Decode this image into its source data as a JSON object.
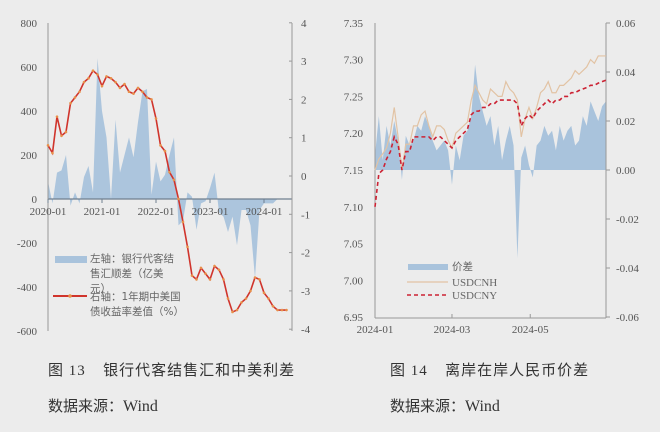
{
  "figure13": {
    "caption_num": "图 13",
    "caption_title": "银行代客结售汇和中美利差",
    "source_label": "数据来源：",
    "source_value": "Wind"
  },
  "figure14": {
    "caption_num": "图 14",
    "caption_title": "离岸在岸人民币价差",
    "source_label": "数据来源：",
    "source_value": "Wind"
  },
  "colors": {
    "area": "#a9c3dc",
    "line13": "#d0342c",
    "marker13": "#e8904a",
    "usdcnh": "#e2c3a4",
    "usdcny": "#cc2233",
    "axis": "#999999"
  },
  "chart_data": [
    {
      "type": "area+line",
      "title": "图 13 银行代客结售汇和中美利差",
      "x_ticks": [
        "2020-01",
        "2021-01",
        "2022-01",
        "2023-01",
        "2024-01"
      ],
      "y_left": {
        "ticks": [
          800,
          600,
          400,
          200,
          0,
          -200,
          -400,
          -600
        ],
        "range": [
          -600,
          800
        ]
      },
      "y_right": {
        "ticks": [
          4,
          3,
          2,
          1,
          0,
          -1,
          -2,
          -3,
          -4
        ],
        "range": [
          -4,
          4
        ]
      },
      "legend": [
        {
          "label": "左轴：银行代客结售汇顺差（亿美元）",
          "axis": "left",
          "style": "area"
        },
        {
          "label": "右轴：1年期中美国债收益率差值（%）",
          "axis": "right",
          "style": "line-marker"
        }
      ],
      "series": [
        {
          "name": "左轴：银行代客结售汇顺差（亿美元）",
          "months": [
            "2020-01",
            "2020-02",
            "2020-03",
            "2020-04",
            "2020-05",
            "2020-06",
            "2020-07",
            "2020-08",
            "2020-09",
            "2020-10",
            "2020-11",
            "2020-12",
            "2021-01",
            "2021-02",
            "2021-03",
            "2021-04",
            "2021-05",
            "2021-06",
            "2021-07",
            "2021-08",
            "2021-09",
            "2021-10",
            "2021-11",
            "2021-12",
            "2022-01",
            "2022-02",
            "2022-03",
            "2022-04",
            "2022-05",
            "2022-06",
            "2022-07",
            "2022-08",
            "2022-09",
            "2022-10",
            "2022-11",
            "2022-12",
            "2023-01",
            "2023-02",
            "2023-03",
            "2023-04",
            "2023-05",
            "2023-06",
            "2023-07",
            "2023-08",
            "2023-09",
            "2023-10",
            "2023-11",
            "2023-12",
            "2024-01",
            "2024-02",
            "2024-03",
            "2024-04",
            "2024-05"
          ],
          "values": [
            80,
            -20,
            120,
            130,
            200,
            -30,
            30,
            -20,
            100,
            150,
            30,
            640,
            400,
            280,
            0,
            360,
            120,
            200,
            280,
            190,
            350,
            490,
            500,
            20,
            170,
            80,
            110,
            200,
            280,
            -120,
            -100,
            30,
            10,
            -140,
            -20,
            -10,
            50,
            120,
            -60,
            -80,
            -150,
            -80,
            -210,
            -50,
            -50,
            -120,
            -360,
            -50,
            -20,
            -20,
            -20,
            0,
            0
          ]
        },
        {
          "name": "右轴：1年期中美国债收益率差值（%）",
          "months": [
            "2020-01",
            "2020-02",
            "2020-03",
            "2020-04",
            "2020-05",
            "2020-06",
            "2020-07",
            "2020-08",
            "2020-09",
            "2020-10",
            "2020-11",
            "2020-12",
            "2021-01",
            "2021-02",
            "2021-03",
            "2021-04",
            "2021-05",
            "2021-06",
            "2021-07",
            "2021-08",
            "2021-09",
            "2021-10",
            "2021-11",
            "2021-12",
            "2022-01",
            "2022-02",
            "2022-03",
            "2022-04",
            "2022-05",
            "2022-06",
            "2022-07",
            "2022-08",
            "2022-09",
            "2022-10",
            "2022-11",
            "2022-12",
            "2023-01",
            "2023-02",
            "2023-03",
            "2023-04",
            "2023-05",
            "2023-06",
            "2023-07",
            "2023-08",
            "2023-09",
            "2023-10",
            "2023-11",
            "2023-12",
            "2024-01",
            "2024-02",
            "2024-03",
            "2024-04",
            "2024-05",
            "2024-06"
          ],
          "values": [
            0.8,
            0.6,
            1.55,
            1.05,
            1.15,
            1.9,
            2.05,
            2.2,
            2.45,
            2.55,
            2.75,
            2.65,
            2.35,
            2.6,
            2.55,
            2.45,
            2.3,
            2.4,
            2.2,
            2.15,
            2.3,
            2.2,
            2.05,
            2.0,
            1.5,
            0.8,
            0.65,
            0.1,
            -0.1,
            -0.6,
            -1.2,
            -1.85,
            -2.6,
            -2.7,
            -2.4,
            -2.55,
            -2.7,
            -2.35,
            -2.45,
            -2.7,
            -3.2,
            -3.55,
            -3.5,
            -3.3,
            -3.2,
            -3.0,
            -2.65,
            -2.7,
            -3.05,
            -3.2,
            -3.4,
            -3.5,
            -3.5,
            -3.5
          ]
        }
      ]
    },
    {
      "type": "area+line",
      "title": "图 14 离岸在岸人民币价差",
      "x_ticks": [
        "2024-01",
        "2024-03",
        "2024-05"
      ],
      "y_left": {
        "ticks": [
          "7.35",
          "7.30",
          "7.25",
          "7.20",
          "7.15",
          "7.10",
          "7.05",
          "7.00",
          "6.95"
        ],
        "range": [
          6.95,
          7.35
        ]
      },
      "y_right": {
        "ticks": [
          "0.06",
          "0.04",
          "0.02",
          "0.00",
          "-0.02",
          "-0.04",
          "-0.06"
        ],
        "range": [
          -0.06,
          0.06
        ]
      },
      "legend": [
        {
          "label": "价差",
          "axis": "right",
          "style": "area"
        },
        {
          "label": "USDCNH",
          "axis": "left",
          "style": "line"
        },
        {
          "label": "USDCNY",
          "axis": "left",
          "style": "dashed"
        }
      ],
      "x_days": [
        0,
        3,
        6,
        9,
        12,
        15,
        18,
        21,
        24,
        27,
        30,
        33,
        36,
        39,
        42,
        45,
        48,
        51,
        54,
        57,
        60,
        63,
        66,
        69,
        72,
        75,
        78,
        81,
        84,
        87,
        90,
        93,
        96,
        99,
        102,
        105,
        108,
        111,
        114,
        117,
        120,
        123,
        126,
        129,
        132,
        135,
        138,
        141,
        144,
        147,
        150,
        153,
        156,
        159,
        162,
        165,
        168,
        171,
        174,
        177,
        180
      ],
      "series": [
        {
          "name": "价差",
          "values": [
            0.006,
            0.022,
            0.004,
            0.018,
            0.01,
            0.02,
            0.012,
            -0.004,
            0.014,
            0.01,
            0.012,
            0.018,
            0.016,
            0.022,
            0.018,
            0.012,
            0.008,
            0.01,
            0.012,
            0.008,
            -0.006,
            0.01,
            0.004,
            0.014,
            0.016,
            0.022,
            0.043,
            0.03,
            0.024,
            0.018,
            0.022,
            0.01,
            0.018,
            0.004,
            0.012,
            0.018,
            0.01,
            -0.036,
            0.005,
            0.01,
            0.002,
            -0.003,
            0.01,
            0.012,
            0.018,
            0.014,
            0.016,
            0.008,
            0.018,
            0.012,
            0.016,
            0.018,
            0.01,
            0.012,
            0.022,
            0.018,
            0.028,
            0.024,
            0.02,
            0.026,
            0.028
          ]
        },
        {
          "name": "USDCNH",
          "values": [
            7.15,
            7.165,
            7.172,
            7.18,
            7.2,
            7.235,
            7.195,
            7.15,
            7.185,
            7.185,
            7.21,
            7.21,
            7.225,
            7.23,
            7.21,
            7.195,
            7.21,
            7.21,
            7.205,
            7.19,
            7.18,
            7.2,
            7.205,
            7.21,
            7.215,
            7.245,
            7.265,
            7.255,
            7.245,
            7.24,
            7.26,
            7.255,
            7.25,
            7.25,
            7.27,
            7.26,
            7.255,
            7.245,
            7.195,
            7.22,
            7.235,
            7.22,
            7.235,
            7.255,
            7.26,
            7.27,
            7.255,
            7.255,
            7.265,
            7.265,
            7.27,
            7.275,
            7.285,
            7.28,
            7.285,
            7.29,
            7.3,
            7.295,
            7.305,
            7.305,
            7.305
          ]
        },
        {
          "name": "USDCNY",
          "values": [
            7.1,
            7.145,
            7.15,
            7.165,
            7.175,
            7.195,
            7.185,
            7.15,
            7.175,
            7.175,
            7.195,
            7.195,
            7.195,
            7.195,
            7.195,
            7.19,
            7.195,
            7.195,
            7.19,
            7.185,
            7.18,
            7.19,
            7.195,
            7.2,
            7.205,
            7.225,
            7.23,
            7.23,
            7.235,
            7.235,
            7.24,
            7.24,
            7.245,
            7.245,
            7.245,
            7.245,
            7.245,
            7.24,
            7.21,
            7.22,
            7.225,
            7.22,
            7.23,
            7.235,
            7.24,
            7.245,
            7.24,
            7.245,
            7.245,
            7.25,
            7.25,
            7.255,
            7.255,
            7.258,
            7.26,
            7.262,
            7.265,
            7.265,
            7.268,
            7.27,
            7.272
          ]
        }
      ]
    }
  ]
}
